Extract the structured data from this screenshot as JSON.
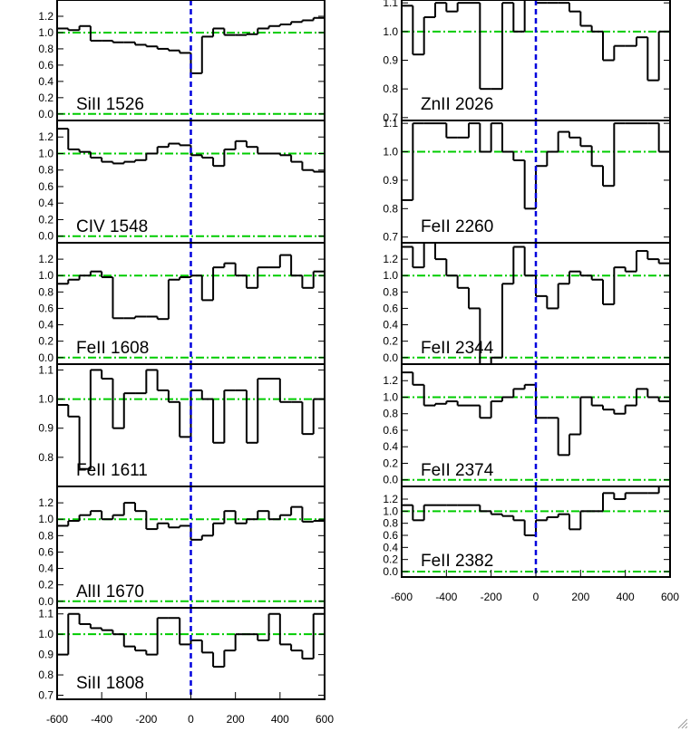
{
  "chart_data": [
    {
      "type": "line",
      "drawstyle": "steps-mid",
      "label": "SiII 1526",
      "x": [
        -575,
        -525,
        -475,
        -425,
        -375,
        -325,
        -275,
        -225,
        -175,
        -125,
        -75,
        -25,
        25,
        75,
        125,
        175,
        225,
        275,
        325,
        375,
        425,
        475,
        525,
        575
      ],
      "values": [
        1.05,
        1.03,
        1.08,
        0.9,
        0.9,
        0.88,
        0.88,
        0.85,
        0.83,
        0.8,
        0.78,
        0.75,
        0.5,
        0.95,
        1.05,
        0.97,
        0.97,
        0.98,
        1.05,
        1.08,
        1.1,
        1.13,
        1.15,
        1.18
      ],
      "xlim": [
        -600,
        600
      ],
      "ylim": [
        -0.08,
        1.4
      ],
      "yticks": [
        {
          "value": 0,
          "label": "0.0"
        },
        0.2,
        0.4,
        0.6,
        0.8,
        {
          "value": 1,
          "label": "1.0"
        },
        1.2
      ],
      "reference_lines": [
        0,
        1
      ],
      "velocity_marker": 0,
      "color": "#000000",
      "reference_color": "#00cc00",
      "marker_color": "#0000dd"
    },
    {
      "type": "line",
      "drawstyle": "steps-mid",
      "label": "CIV 1548",
      "x": [
        -575,
        -525,
        -475,
        -425,
        -375,
        -325,
        -275,
        -225,
        -175,
        -125,
        -75,
        -25,
        25,
        75,
        125,
        175,
        225,
        275,
        325,
        375,
        425,
        475,
        525,
        575
      ],
      "values": [
        1.3,
        1.05,
        1.02,
        0.95,
        0.9,
        0.88,
        0.9,
        0.92,
        1.0,
        1.08,
        1.12,
        1.1,
        0.98,
        0.95,
        0.85,
        1.05,
        1.15,
        1.08,
        1.0,
        1.0,
        0.98,
        0.9,
        0.8,
        0.78
      ],
      "xlim": [
        -600,
        600
      ],
      "ylim": [
        -0.08,
        1.4
      ],
      "yticks": [
        {
          "value": 0,
          "label": "0.0"
        },
        0.2,
        0.4,
        0.6,
        0.8,
        {
          "value": 1,
          "label": "1.0"
        },
        1.2
      ],
      "reference_lines": [
        0,
        1
      ],
      "velocity_marker": 0,
      "color": "#000000",
      "reference_color": "#00cc00",
      "marker_color": "#0000dd"
    },
    {
      "type": "line",
      "drawstyle": "steps-mid",
      "label": "FeII 1608",
      "x": [
        -575,
        -525,
        -475,
        -425,
        -375,
        -325,
        -275,
        -225,
        -175,
        -125,
        -75,
        -25,
        25,
        75,
        125,
        175,
        225,
        275,
        325,
        375,
        425,
        475,
        525,
        575
      ],
      "values": [
        0.9,
        0.95,
        1.0,
        1.05,
        0.98,
        0.48,
        0.48,
        0.5,
        0.5,
        0.47,
        0.95,
        0.98,
        1.0,
        0.7,
        1.1,
        1.15,
        1.0,
        0.85,
        1.1,
        1.1,
        1.25,
        1.0,
        0.85,
        1.05
      ],
      "xlim": [
        -600,
        600
      ],
      "ylim": [
        -0.08,
        1.4
      ],
      "yticks": [
        {
          "value": 0,
          "label": "0.0"
        },
        0.2,
        0.4,
        0.6,
        0.8,
        {
          "value": 1,
          "label": "1.0"
        },
        1.2
      ],
      "reference_lines": [
        0,
        1
      ],
      "velocity_marker": 0,
      "color": "#000000",
      "reference_color": "#00cc00",
      "marker_color": "#0000dd"
    },
    {
      "type": "line",
      "drawstyle": "steps-mid",
      "label": "FeII 1611",
      "x": [
        -575,
        -525,
        -475,
        -425,
        -375,
        -325,
        -275,
        -225,
        -175,
        -125,
        -75,
        -25,
        25,
        75,
        125,
        175,
        225,
        275,
        325,
        375,
        425,
        475,
        525,
        575
      ],
      "values": [
        0.98,
        0.94,
        0.76,
        1.1,
        1.07,
        0.9,
        1.02,
        1.02,
        1.1,
        1.03,
        0.99,
        0.87,
        1.03,
        1.0,
        0.85,
        1.03,
        1.03,
        0.85,
        1.07,
        1.07,
        0.99,
        0.99,
        0.88,
        1.0
      ],
      "xlim": [
        -600,
        600
      ],
      "ylim": [
        0.7,
        1.12
      ],
      "yticks": [
        0.8,
        0.9,
        {
          "value": 1,
          "label": "1.0"
        },
        1.1
      ],
      "reference_lines": [
        1
      ],
      "velocity_marker": 0,
      "color": "#000000",
      "reference_color": "#00cc00",
      "marker_color": "#0000dd"
    },
    {
      "type": "line",
      "drawstyle": "steps-mid",
      "label": "AlII 1670",
      "x": [
        -575,
        -525,
        -475,
        -425,
        -375,
        -325,
        -275,
        -225,
        -175,
        -125,
        -75,
        -25,
        25,
        75,
        125,
        175,
        225,
        275,
        325,
        375,
        425,
        475,
        525,
        575
      ],
      "values": [
        0.92,
        0.98,
        1.05,
        1.1,
        1.0,
        1.05,
        1.2,
        1.1,
        0.88,
        0.95,
        0.9,
        0.92,
        0.75,
        0.8,
        0.95,
        1.1,
        0.95,
        1.0,
        1.1,
        1.0,
        1.05,
        1.15,
        0.97,
        0.98
      ],
      "xlim": [
        -600,
        600
      ],
      "ylim": [
        -0.08,
        1.4
      ],
      "yticks": [
        {
          "value": 0,
          "label": "0.0"
        },
        0.2,
        0.4,
        0.6,
        0.8,
        {
          "value": 1,
          "label": "1.0"
        },
        1.2
      ],
      "reference_lines": [
        0,
        1
      ],
      "velocity_marker": 0,
      "color": "#000000",
      "reference_color": "#00cc00",
      "marker_color": "#0000dd"
    },
    {
      "type": "line",
      "drawstyle": "steps-mid",
      "label": "SiII 1808",
      "x": [
        -575,
        -525,
        -475,
        -425,
        -375,
        -325,
        -275,
        -225,
        -175,
        -125,
        -75,
        -25,
        25,
        75,
        125,
        175,
        225,
        275,
        325,
        375,
        425,
        475,
        525,
        575
      ],
      "values": [
        0.9,
        1.1,
        1.05,
        1.03,
        1.02,
        1.0,
        0.94,
        0.92,
        0.9,
        1.08,
        1.08,
        0.95,
        0.97,
        0.91,
        0.84,
        0.92,
        1.0,
        1.0,
        0.97,
        1.1,
        0.95,
        0.92,
        0.88,
        1.1
      ],
      "xlim": [
        -600,
        600
      ],
      "ylim": [
        0.68,
        1.13
      ],
      "xticks": [
        -600,
        -400,
        -200,
        0,
        200,
        400,
        600
      ],
      "yticks": [
        0.7,
        0.8,
        0.9,
        {
          "value": 1,
          "label": "1.0"
        },
        1.1
      ],
      "reference_lines": [
        1
      ],
      "velocity_marker": 0,
      "color": "#000000",
      "reference_color": "#00cc00",
      "marker_color": "#0000dd"
    },
    {
      "type": "line",
      "drawstyle": "steps-mid",
      "label": "ZnII 2026",
      "x": [
        -575,
        -525,
        -475,
        -425,
        -375,
        -325,
        -275,
        -225,
        -175,
        -125,
        -75,
        -25,
        25,
        75,
        125,
        175,
        225,
        275,
        325,
        375,
        425,
        475,
        525,
        575
      ],
      "values": [
        1.09,
        0.92,
        1.05,
        1.1,
        1.07,
        1.1,
        1.1,
        0.8,
        0.8,
        1.1,
        1.0,
        1.12,
        1.1,
        1.1,
        1.1,
        1.07,
        1.02,
        1.0,
        0.9,
        0.95,
        0.95,
        0.98,
        0.83,
        1.0
      ],
      "xlim": [
        -600,
        600
      ],
      "ylim": [
        0.69,
        1.11
      ],
      "yticks": [
        0.7,
        0.8,
        0.9,
        {
          "value": 1,
          "label": "1.0"
        },
        1.1
      ],
      "reference_lines": [
        1
      ],
      "velocity_marker": 0,
      "color": "#000000",
      "reference_color": "#00cc00",
      "marker_color": "#0000dd"
    },
    {
      "type": "line",
      "drawstyle": "steps-mid",
      "label": "FeII 2260",
      "x": [
        -575,
        -525,
        -475,
        -425,
        -375,
        -325,
        -275,
        -225,
        -175,
        -125,
        -75,
        -25,
        25,
        75,
        125,
        175,
        225,
        275,
        325,
        375,
        425,
        475,
        525,
        575
      ],
      "values": [
        0.83,
        1.1,
        1.1,
        1.1,
        1.05,
        1.05,
        1.1,
        1.0,
        1.1,
        1.0,
        0.97,
        0.8,
        0.95,
        1.0,
        1.07,
        1.05,
        1.02,
        0.95,
        0.88,
        1.1,
        1.1,
        1.1,
        1.1,
        1.0
      ],
      "xlim": [
        -600,
        600
      ],
      "ylim": [
        0.68,
        1.11
      ],
      "yticks": [
        0.7,
        0.8,
        0.9,
        {
          "value": 1,
          "label": "1.0"
        },
        1.1
      ],
      "reference_lines": [
        1
      ],
      "velocity_marker": 0,
      "color": "#000000",
      "reference_color": "#00cc00",
      "marker_color": "#0000dd"
    },
    {
      "type": "line",
      "drawstyle": "steps-mid",
      "label": "FeII 2344",
      "x": [
        -575,
        -525,
        -475,
        -425,
        -375,
        -325,
        -275,
        -225,
        -175,
        -125,
        -75,
        -25,
        25,
        75,
        125,
        175,
        225,
        275,
        325,
        375,
        425,
        475,
        525,
        575
      ],
      "values": [
        1.35,
        1.1,
        1.4,
        1.2,
        1.0,
        0.85,
        0.6,
        -0.1,
        0.0,
        0.9,
        1.35,
        1.0,
        0.75,
        0.6,
        0.9,
        1.05,
        1.0,
        0.95,
        0.65,
        1.1,
        1.05,
        1.3,
        1.2,
        1.15
      ],
      "xlim": [
        -600,
        600
      ],
      "ylim": [
        -0.08,
        1.4
      ],
      "yticks": [
        {
          "value": 0,
          "label": "0.0"
        },
        0.2,
        0.4,
        0.6,
        0.8,
        {
          "value": 1,
          "label": "1.0"
        },
        1.2
      ],
      "reference_lines": [
        0,
        1
      ],
      "velocity_marker": 0,
      "color": "#000000",
      "reference_color": "#00cc00",
      "marker_color": "#0000dd"
    },
    {
      "type": "line",
      "drawstyle": "steps-mid",
      "label": "FeII 2374",
      "x": [
        -575,
        -525,
        -475,
        -425,
        -375,
        -325,
        -275,
        -225,
        -175,
        -125,
        -75,
        -25,
        25,
        75,
        125,
        175,
        225,
        275,
        325,
        375,
        425,
        475,
        525,
        575
      ],
      "values": [
        1.3,
        1.15,
        0.9,
        0.92,
        0.95,
        0.9,
        0.9,
        0.75,
        0.95,
        1.0,
        1.1,
        1.15,
        0.75,
        0.75,
        0.3,
        0.55,
        1.0,
        0.9,
        0.85,
        0.8,
        0.9,
        1.1,
        1.0,
        0.95
      ],
      "xlim": [
        -600,
        600
      ],
      "ylim": [
        -0.08,
        1.4
      ],
      "yticks": [
        {
          "value": 0,
          "label": "0.0"
        },
        0.2,
        0.4,
        0.6,
        0.8,
        {
          "value": 1,
          "label": "1.0"
        },
        1.2
      ],
      "reference_lines": [
        0,
        1
      ],
      "velocity_marker": 0,
      "color": "#000000",
      "reference_color": "#00cc00",
      "marker_color": "#0000dd"
    },
    {
      "type": "line",
      "drawstyle": "steps-mid",
      "label": "FeII 2382",
      "x": [
        -575,
        -525,
        -475,
        -425,
        -375,
        -325,
        -275,
        -225,
        -175,
        -125,
        -75,
        -25,
        25,
        75,
        125,
        175,
        225,
        275,
        325,
        375,
        425,
        475,
        525,
        575
      ],
      "values": [
        1.1,
        0.85,
        1.1,
        1.1,
        1.1,
        1.1,
        1.1,
        1.0,
        0.95,
        0.92,
        0.85,
        0.6,
        0.85,
        0.9,
        0.95,
        0.7,
        1.0,
        1.0,
        1.3,
        1.2,
        1.3,
        1.3,
        1.3,
        1.5
      ],
      "xlim": [
        -600,
        600
      ],
      "ylim": [
        -0.09,
        1.41
      ],
      "xticks": [
        -600,
        -400,
        -200,
        0,
        200,
        400,
        600
      ],
      "yticks": [
        {
          "value": 0,
          "label": "0.0"
        },
        0.2,
        0.4,
        0.6,
        0.8,
        {
          "value": 1,
          "label": "1.0"
        },
        1.2
      ],
      "reference_lines": [
        0,
        1
      ],
      "velocity_marker": 0,
      "color": "#000000",
      "reference_color": "#00cc00",
      "marker_color": "#0000dd"
    }
  ]
}
